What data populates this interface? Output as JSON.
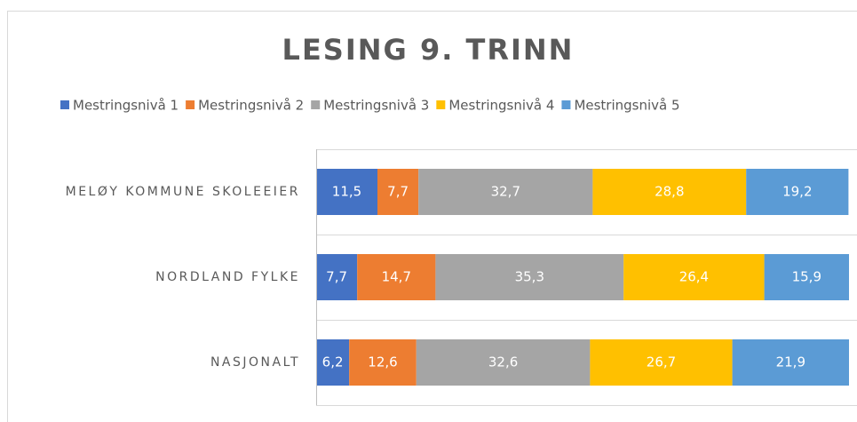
{
  "chart_data": {
    "type": "stacked_barh",
    "title": "LESING 9. TRINN",
    "categories": [
      "MELØY KOMMUNE SKOLEEIER",
      "NORDLAND FYLKE",
      "NASJONALT"
    ],
    "series": [
      {
        "name": "Mestringsnivå 1",
        "color": "#4472c4",
        "values": [
          11.5,
          7.7,
          6.2
        ],
        "value_labels": [
          "11,5",
          "7,7",
          "6,2"
        ]
      },
      {
        "name": "Mestringsnivå 2",
        "color": "#ed7d31",
        "values": [
          7.7,
          14.7,
          12.6
        ],
        "value_labels": [
          "7,7",
          "14,7",
          "12,6"
        ]
      },
      {
        "name": "Mestringsnivå 3",
        "color": "#a5a5a5",
        "values": [
          32.7,
          35.3,
          32.6
        ],
        "value_labels": [
          "32,7",
          "35,3",
          "32,6"
        ]
      },
      {
        "name": "Mestringsnivå 4",
        "color": "#ffc000",
        "values": [
          28.8,
          26.4,
          26.7
        ],
        "value_labels": [
          "28,8",
          "26,4",
          "26,7"
        ]
      },
      {
        "name": "Mestringsnivå 5",
        "color": "#5b9bd5",
        "values": [
          19.2,
          15.9,
          21.9
        ],
        "value_labels": [
          "19,2",
          "15,9",
          "21,9"
        ]
      }
    ],
    "xlim": [
      0,
      100
    ],
    "legend": "top"
  }
}
